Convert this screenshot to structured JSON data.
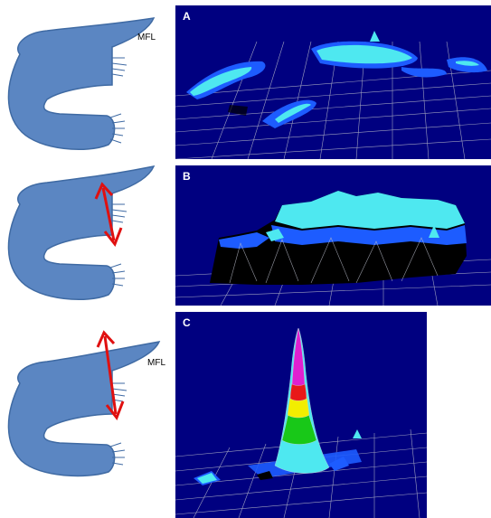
{
  "panels": [
    {
      "label": "A"
    },
    {
      "label": "B"
    },
    {
      "label": "C"
    }
  ],
  "labels": {
    "mfl_top": "MFL",
    "mfl_bottom": "MFL"
  },
  "colors": {
    "shape_fill": "#5b86c2",
    "shape_stroke": "#3f6aa3",
    "arrow": "#e01010",
    "panel_bg": "#000080",
    "grid": "#b9bcc9",
    "surface_light": "#4ee8f0",
    "surface_mid": "#1d5cff",
    "peak_red": "#e81818",
    "peak_yellow": "#f2ee00",
    "peak_green": "#18c818",
    "peak_magenta": "#e020d0"
  }
}
